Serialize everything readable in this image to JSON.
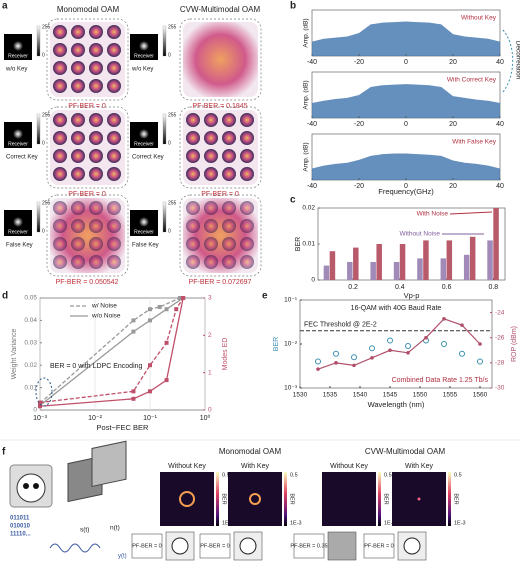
{
  "panel_labels": [
    "a",
    "b",
    "c",
    "d",
    "e",
    "f"
  ],
  "a": {
    "titles": [
      "Monomodal OAM",
      "CVW-Multimodal OAM"
    ],
    "receiver": "Receiver",
    "cbar": [
      "255",
      "0"
    ],
    "rows": [
      {
        "key": "w/o Key",
        "ber": [
          "PF-BER = 0",
          "PF-BER = 0.1845"
        ]
      },
      {
        "key": "Correct Key",
        "ber": [
          "PF-BER = 0",
          "PF-BER = 0"
        ]
      },
      {
        "key": "False Key",
        "ber": [
          "PF-BER = 0.050542",
          "PF-BER = 0.072697"
        ]
      }
    ]
  },
  "b": {
    "type": "area",
    "xlabel": "Frequency(GHz)",
    "ylabel": "Amp. (dB)",
    "annotation": "Decorrelation",
    "color": "#4a7bb0",
    "xlim": [
      -40,
      40
    ],
    "xticks": [
      -40,
      -20,
      0,
      20,
      40
    ],
    "ylim": [
      -100,
      -20
    ],
    "x": [
      -40,
      -35,
      -30,
      -25,
      -20,
      -15,
      -10,
      -5,
      0,
      5,
      10,
      15,
      20,
      25,
      30,
      35,
      40
    ],
    "series": [
      {
        "name": "Without Key",
        "values": [
          -75,
          -70,
          -68,
          -66,
          -60,
          -45,
          -42,
          -41,
          -40,
          -41,
          -42,
          -45,
          -62,
          -66,
          -68,
          -70,
          -75
        ]
      },
      {
        "name": "With Correct Key",
        "values": [
          -74,
          -70,
          -67,
          -65,
          -60,
          -46,
          -43,
          -42,
          -41,
          -42,
          -43,
          -46,
          -62,
          -65,
          -68,
          -70,
          -74
        ]
      },
      {
        "name": "With False Key",
        "values": [
          -80,
          -75,
          -72,
          -70,
          -65,
          -58,
          -55,
          -54,
          -54,
          -55,
          -56,
          -58,
          -66,
          -70,
          -72,
          -75,
          -80
        ]
      }
    ]
  },
  "c": {
    "type": "bar",
    "xlabel": "Vp-p",
    "ylabel": "BER",
    "xlim": [
      0.05,
      0.85
    ],
    "xticks": [
      0.2,
      0.4,
      0.6,
      0.8
    ],
    "ylim": [
      0,
      0.02
    ],
    "yticks": [
      0,
      0.01,
      0.02
    ],
    "x": [
      0.1,
      0.2,
      0.3,
      0.4,
      0.5,
      0.6,
      0.7,
      0.8
    ],
    "series": [
      {
        "name": "Without Noise",
        "color": "#a08ab8",
        "values": [
          0.004,
          0.005,
          0.005,
          0.005,
          0.006,
          0.006,
          0.007,
          0.011
        ]
      },
      {
        "name": "With Noise",
        "color": "#b85a6a",
        "values": [
          0.008,
          0.009,
          0.01,
          0.01,
          0.011,
          0.011,
          0.012,
          0.02
        ]
      }
    ]
  },
  "d": {
    "type": "line",
    "xlabel": "Post−FEC BER",
    "ylabel": "Weight Variance",
    "y2label": "Modes ED",
    "annotation": "BER = 0 with LDPC Encoding",
    "xlog": true,
    "xlim": [
      0.001,
      1
    ],
    "xticks": [
      {
        "value": 0.001,
        "label": "10⁻³"
      },
      {
        "value": 0.01,
        "label": "10⁻²"
      },
      {
        "value": 0.1,
        "label": "10⁻¹"
      },
      {
        "value": 1,
        "label": "10⁰"
      }
    ],
    "ylim": [
      0,
      0.05
    ],
    "yticks": [
      0,
      0.01,
      0.02,
      0.03,
      0.04,
      0.05
    ],
    "y2lim": [
      0,
      3
    ],
    "y2ticks": [
      0,
      1,
      2,
      3
    ],
    "series": [
      {
        "name": "w/ Noise",
        "color": "#999999",
        "dash": true,
        "x": [
          0.001,
          0.05,
          0.1,
          0.15,
          0.35,
          0.4
        ],
        "values": [
          0.003,
          0.04,
          0.045,
          0.046,
          0.05,
          0.05
        ]
      },
      {
        "name": "w/o Noise",
        "color": "#999999",
        "dash": false,
        "x": [
          0.001,
          0.05,
          0.1,
          0.2,
          0.4
        ],
        "values": [
          0.002,
          0.035,
          0.04,
          0.045,
          0.05
        ]
      },
      {
        "color": "#c0506a",
        "dash": true,
        "axis": "y2",
        "x": [
          0.001,
          0.05,
          0.1,
          0.2,
          0.3,
          0.4
        ],
        "values": [
          0.2,
          0.5,
          1.2,
          1.8,
          2.7,
          3
        ]
      },
      {
        "color": "#c0506a",
        "dash": false,
        "axis": "y2",
        "x": [
          0.001,
          0.05,
          0.1,
          0.2,
          0.4
        ],
        "values": [
          0.1,
          0.3,
          0.5,
          0.8,
          3
        ]
      }
    ]
  },
  "e": {
    "type": "scatter-line",
    "title": "16-QAM with 40G Baud Rate",
    "xlabel": "Wavelength (nm)",
    "ylabel": "BER",
    "y2label": "ROP (dBm)",
    "threshold": 0.02,
    "threshold_label": "FEC Threshold @ 2E-2",
    "annotation": "Combined Data Rate 1.25 Tb/s",
    "xlim": [
      1530,
      1562
    ],
    "xticks": [
      1530,
      1535,
      1540,
      1545,
      1550,
      1555,
      1560
    ],
    "ylog": true,
    "ylim": [
      0.001,
      0.1
    ],
    "yticks": [
      {
        "value": 0.001,
        "label": "10⁻³"
      },
      {
        "value": 0.01,
        "label": "10⁻²"
      },
      {
        "value": 0.1,
        "label": "10⁻¹"
      }
    ],
    "y2lim": [
      -30,
      -23
    ],
    "y2ticks": [
      -30,
      -28,
      -26,
      -24
    ],
    "x": [
      1533,
      1536,
      1539,
      1542,
      1545,
      1548,
      1551,
      1554,
      1557,
      1560
    ],
    "series": [
      {
        "color": "#3a8fb0",
        "values": [
          0.004,
          0.006,
          0.005,
          0.008,
          0.012,
          0.009,
          0.012,
          0.01,
          0.006,
          0.004
        ]
      },
      {
        "color": "#b0506a",
        "axis": "y2",
        "values": [
          -28.5,
          -28,
          -28.2,
          -27.6,
          -27,
          -27.2,
          -26,
          -24.5,
          -25,
          -26.5
        ]
      }
    ]
  },
  "f": {
    "bits": [
      "011011",
      "010010",
      "11110..."
    ],
    "signals": [
      "s(t)",
      "n(t)",
      "y(t)"
    ],
    "groups": [
      "Monomodal OAM",
      "CVW-Multimodal OAM"
    ],
    "keys": [
      "Without Key",
      "With Key",
      "Without Key",
      "With Key"
    ],
    "cbar": [
      "BER",
      "0.5",
      "1E-3"
    ],
    "results": [
      "PF-BER = 0",
      "PF-BER = 0",
      "PF-BER = 0.35",
      "PF-BER = 0"
    ]
  }
}
